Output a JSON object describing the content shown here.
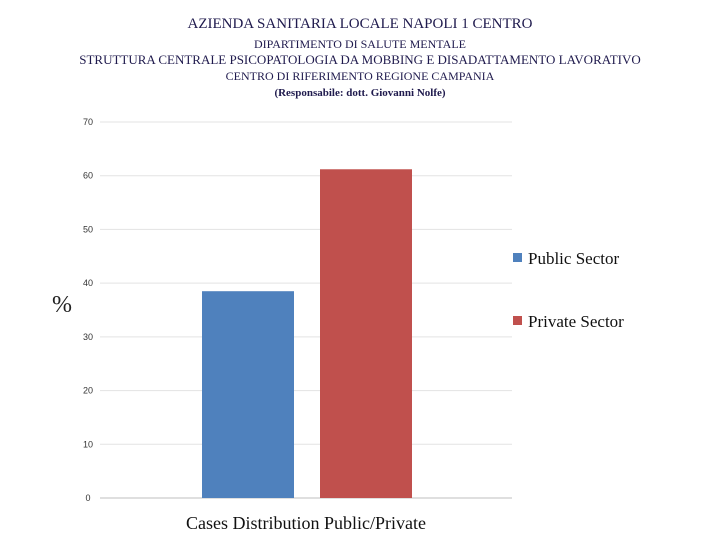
{
  "header": {
    "line1": "AZIENDA SANITARIA LOCALE NAPOLI 1 CENTRO",
    "line2": "DIPARTIMENTO DI SALUTE MENTALE",
    "line3": "STRUTTURA CENTRALE PSICOPATOLOGIA DA MOBBING E DISADATTAMENTO LAVORATIVO",
    "line4": "CENTRO DI RIFERIMENTO REGIONE CAMPANIA",
    "line5": "(Responsabile: dott. Giovanni Nolfe)"
  },
  "chart_data": {
    "type": "bar",
    "categories": [
      ""
    ],
    "series": [
      {
        "name": "Public Sector",
        "values": [
          38.5
        ],
        "color": "#4f81bd"
      },
      {
        "name": "Private Sector",
        "values": [
          61.2
        ],
        "color": "#c0504d"
      }
    ],
    "xlabel": "Cases Distribution Public/Private",
    "ylabel": "%",
    "ylim": [
      0,
      70
    ],
    "yticks": [
      0,
      10,
      20,
      30,
      40,
      50,
      60,
      70
    ],
    "grid": true,
    "legend": "right"
  }
}
